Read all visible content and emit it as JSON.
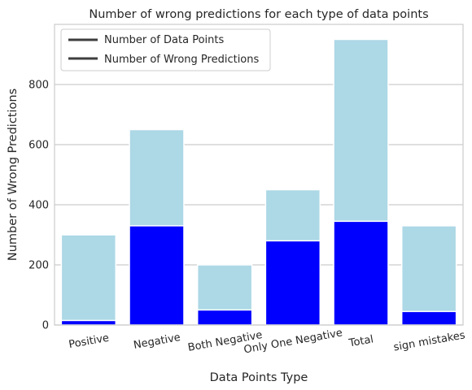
{
  "chart_data": {
    "type": "bar",
    "title": "Number of wrong predictions for each type of data points",
    "xlabel": "Data Points Type",
    "ylabel": "Number of Wrong Predictions",
    "categories": [
      "Positive",
      "Negative",
      "Both Negative",
      "Only One Negative",
      "Total",
      "sign mistakes"
    ],
    "series": [
      {
        "name": "Number of Data Points",
        "values": [
          300,
          650,
          200,
          450,
          950,
          330
        ],
        "color": "#add8e6"
      },
      {
        "name": "Number of Wrong Predictions",
        "values": [
          15,
          330,
          50,
          280,
          345,
          45
        ],
        "color": "#0000ff"
      }
    ],
    "ylim": [
      0,
      1000
    ],
    "yticks": [
      0,
      200,
      400,
      600,
      800
    ],
    "grid": "horizontal",
    "legend_position": "top-left",
    "x_tick_rotation": "slanted",
    "bars_overlaid": true
  }
}
